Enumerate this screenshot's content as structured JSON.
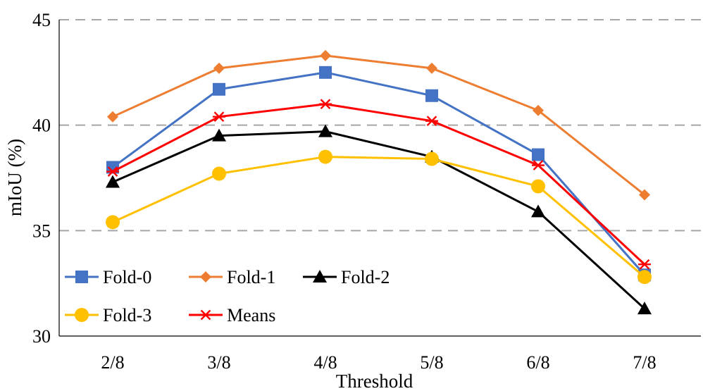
{
  "chart_data": {
    "type": "line",
    "title": "",
    "xlabel": "Threshold",
    "ylabel": "mIoU (%)",
    "categories": [
      "2/8",
      "3/8",
      "4/8",
      "5/8",
      "6/8",
      "7/8"
    ],
    "ylim": [
      30,
      45
    ],
    "yticks": [
      30,
      35,
      40,
      45
    ],
    "grid": true,
    "legend_position": "bottom-left",
    "series": [
      {
        "name": "Fold-0",
        "color": "#4472c4",
        "marker": "square",
        "values": [
          38.0,
          41.7,
          42.5,
          41.4,
          38.6,
          32.9
        ]
      },
      {
        "name": "Fold-1",
        "color": "#ed7d31",
        "marker": "diamond",
        "values": [
          40.4,
          42.7,
          43.3,
          42.7,
          40.7,
          36.7
        ]
      },
      {
        "name": "Fold-2",
        "color": "#000000",
        "marker": "triangle",
        "values": [
          37.3,
          39.5,
          39.7,
          38.5,
          35.9,
          31.3
        ]
      },
      {
        "name": "Fold-3",
        "color": "#ffc000",
        "marker": "circle",
        "values": [
          35.4,
          37.7,
          38.5,
          38.4,
          37.1,
          32.8
        ]
      },
      {
        "name": "Means",
        "color": "#ff0000",
        "marker": "star",
        "values": [
          37.8,
          40.4,
          41.0,
          40.2,
          38.1,
          33.4
        ]
      }
    ]
  }
}
